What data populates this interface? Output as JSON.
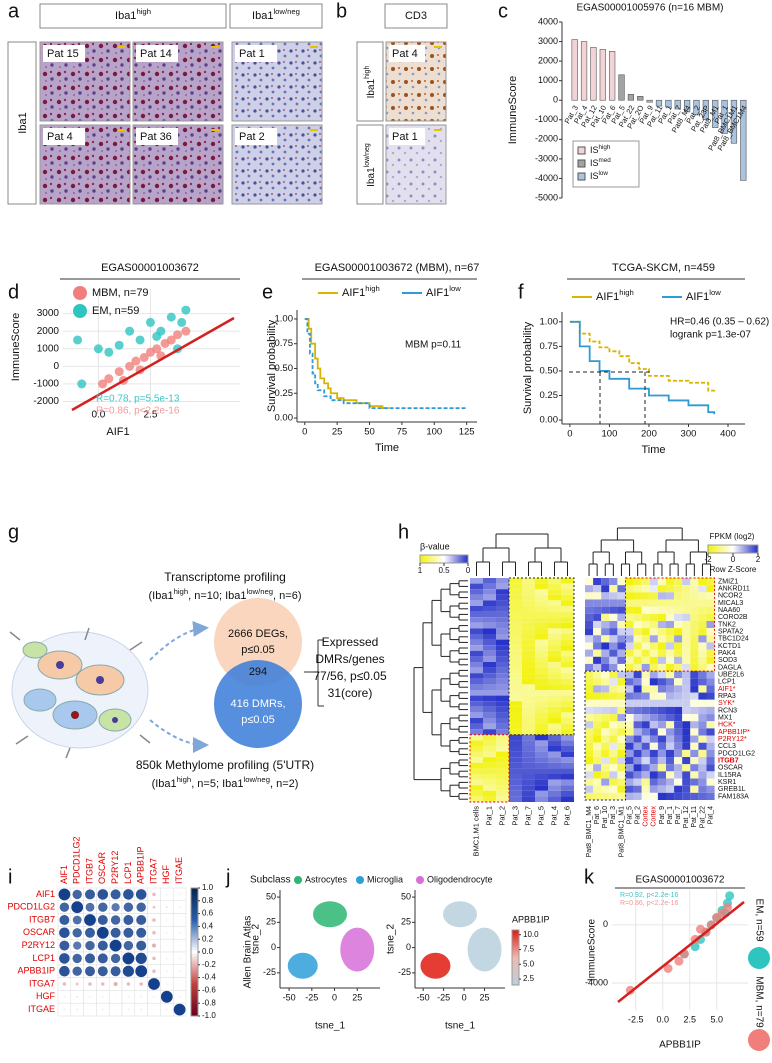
{
  "panel_labels": [
    "a",
    "b",
    "c",
    "d",
    "e",
    "f",
    "g",
    "h",
    "i",
    "j",
    "k"
  ],
  "a": {
    "groups": [
      [
        "Iba1",
        "high"
      ],
      [
        "Iba1",
        "low/neg"
      ]
    ],
    "row_label": "Iba1",
    "tiles": [
      "Pat 15",
      "Pat 14",
      "Pat 1",
      "Pat 4",
      "Pat 36",
      "Pat 2"
    ]
  },
  "b": {
    "header": "CD3",
    "rows": [
      [
        "Iba1",
        "high"
      ],
      [
        "Iba1",
        "low/neg"
      ]
    ],
    "tiles": [
      "Pat 4",
      "Pat 1"
    ]
  },
  "c": {
    "type": "bar",
    "title": "EGAS00001005976 (n=16 MBM)",
    "ylabel": "ImmuneScore",
    "categories": [
      "Pat_3",
      "Pat_4",
      "Pat_12",
      "Pat_10",
      "Pat_6",
      "Pat_5",
      "Pat_22",
      "Pat_2O",
      "Pat_9",
      "Pat_11",
      "Pat_1",
      "Pat_7",
      "Pat8_M4",
      "Pat_2",
      "Pat_23P",
      "Pat8_M1",
      "Pat_1",
      "Pat8_BMC1M1",
      "Pat8_BMC1M4"
    ],
    "series": [
      {
        "name": [
          "IS",
          "high"
        ],
        "color": "#f2d4d7",
        "values": [
          3100,
          3000,
          2700,
          2600,
          2500,
          null,
          null,
          null,
          null,
          null,
          null,
          null,
          null,
          null,
          null,
          null,
          null,
          null,
          null
        ]
      },
      {
        "name": [
          "IS",
          "med"
        ],
        "color": "#a3a3a3",
        "values": [
          null,
          null,
          null,
          null,
          null,
          1300,
          300,
          200,
          null,
          null,
          null,
          null,
          null,
          null,
          null,
          null,
          null,
          null,
          null
        ]
      },
      {
        "name": [
          "IS",
          "low"
        ],
        "color": "#a9c3e0",
        "values": [
          null,
          null,
          null,
          null,
          null,
          null,
          null,
          null,
          -100,
          -300,
          -350,
          -450,
          -600,
          -750,
          -1000,
          -1400,
          -1700,
          -2200,
          -4100
        ]
      }
    ],
    "ylim": [
      -5000,
      4000
    ],
    "yticks": [
      4000,
      3000,
      2000,
      1000,
      0,
      -1000,
      -2000,
      -3000,
      -4000,
      -5000
    ]
  },
  "d": {
    "type": "scatter",
    "title": "EGAS00001003672",
    "xlabel": "AIF1",
    "ylabel": "ImmuneScore",
    "xlim": [
      -1.7,
      6.8
    ],
    "ylim": [
      -2200,
      4400
    ],
    "xticks": [
      {
        "value": 0,
        "label": "0.0"
      },
      {
        "value": 2.5,
        "label": "2.5"
      }
    ],
    "yticks": [
      -2000,
      -1000,
      0,
      1000,
      2000,
      3000
    ],
    "grid": true,
    "series": [
      {
        "name": "MBM, n=79",
        "color": "#f07f7c",
        "x": [
          0.2,
          0.5,
          1,
          1.5,
          1.8,
          2.2,
          2.5,
          2.8,
          3.2,
          3.5,
          3.8,
          4.2,
          1.2,
          2,
          3
        ],
        "y": [
          -1000,
          -700,
          -300,
          0,
          300,
          500,
          800,
          1000,
          1300,
          1500,
          1800,
          2000,
          -800,
          -200,
          600
        ]
      },
      {
        "name": "EM, n=59",
        "color": "#2ec4c0",
        "x": [
          -1,
          -0.8,
          0,
          0.5,
          1.5,
          2,
          2.5,
          3,
          3.5,
          4,
          4.2,
          1,
          2.8,
          3.8
        ],
        "y": [
          1500,
          -1000,
          1000,
          800,
          2000,
          1500,
          2500,
          2000,
          2800,
          2500,
          3200,
          1200,
          1700,
          1000
        ]
      }
    ],
    "annotations": [
      {
        "text": "R=0.78, p=5.5e-13",
        "color": "#3cc6c6"
      },
      {
        "text": "R=0.86, p<2.2e-16",
        "color": "#f29a9a"
      }
    ]
  },
  "e": {
    "type": "survival",
    "title": "EGAS00001003672 (MBM), n=67",
    "xlabel": "Time",
    "ylabel": "Survival probability",
    "annotations": [
      "MBM p=0.11"
    ],
    "xlim": [
      -6,
      133
    ],
    "ylim": [
      -0.04,
      1.09
    ],
    "xticks": [
      0,
      25,
      50,
      75,
      100,
      125
    ],
    "yticks": [
      {
        "value": 0,
        "label": "0.00"
      },
      {
        "value": 0.25,
        "label": "0.25"
      },
      {
        "value": 0.5,
        "label": "0.50"
      },
      {
        "value": 0.75,
        "label": "0.75"
      },
      {
        "value": 1,
        "label": "1.00"
      }
    ],
    "series": [
      {
        "name": [
          "AIF1",
          "high"
        ],
        "color": "#d9b300",
        "dash": false,
        "x": [
          0,
          3,
          5,
          8,
          10,
          12,
          15,
          18,
          20,
          25,
          30,
          40,
          50,
          60,
          65
        ],
        "y": [
          1,
          0.9,
          0.75,
          0.6,
          0.5,
          0.4,
          0.35,
          0.3,
          0.25,
          0.2,
          0.18,
          0.15,
          0.12,
          0.1,
          0.1
        ]
      },
      {
        "name": [
          "AIF1",
          "low"
        ],
        "color": "#2f9bd6",
        "dash": true,
        "x": [
          0,
          2,
          4,
          6,
          8,
          10,
          15,
          20,
          30,
          50,
          75,
          100,
          125
        ],
        "y": [
          1,
          0.85,
          0.65,
          0.45,
          0.35,
          0.28,
          0.22,
          0.18,
          0.15,
          0.1,
          0.1,
          0.1,
          0.1
        ]
      }
    ]
  },
  "f": {
    "type": "survival",
    "title": "TCGA-SKCM, n=459",
    "xlabel": "Time",
    "ylabel": "Survival probability",
    "annotations": [
      "HR=0.46 (0.35 – 0.62)",
      "logrank p=1.3e-07"
    ],
    "xlim": [
      -20,
      443
    ],
    "ylim": [
      -0.04,
      1.1
    ],
    "xticks": [
      0,
      100,
      200,
      300,
      400
    ],
    "yticks": [
      {
        "value": 0,
        "label": "0.00"
      },
      {
        "value": 0.25,
        "label": "0.25"
      },
      {
        "value": 0.5,
        "label": "0.50"
      },
      {
        "value": 0.75,
        "label": "0.75"
      },
      {
        "value": 1,
        "label": "1.00"
      }
    ],
    "series": [
      {
        "name": [
          "AIF1",
          "high"
        ],
        "color": "#d9b300",
        "dash": true,
        "x": [
          0,
          25,
          50,
          75,
          100,
          125,
          150,
          175,
          200,
          250,
          300,
          350,
          370
        ],
        "y": [
          1,
          0.88,
          0.8,
          0.74,
          0.7,
          0.65,
          0.58,
          0.52,
          0.45,
          0.4,
          0.38,
          0.3,
          0.3
        ]
      },
      {
        "name": [
          "AIF1",
          "low"
        ],
        "color": "#2f9bd6",
        "dash": false,
        "x": [
          0,
          25,
          50,
          75,
          100,
          150,
          200,
          250,
          300,
          350,
          365
        ],
        "y": [
          1,
          0.75,
          0.6,
          0.5,
          0.42,
          0.32,
          0.25,
          0.2,
          0.15,
          0.08,
          0.06
        ]
      }
    ]
  },
  "g": {
    "transcriptome": "Transcriptome profiling",
    "transcriptome_groups": [
      "(Iba1",
      "high",
      ", n=10; Iba1",
      "low/neg",
      ", n=6)"
    ],
    "degs": [
      "2666 DEGs,",
      "p≤0.05"
    ],
    "overlap": "294",
    "dmrs": [
      "416 DMRs,",
      "p≤0.05"
    ],
    "expressed": [
      "Expressed",
      "DMRs/genes",
      "77/56, p≤0.05",
      "31(core)"
    ],
    "methylome": "850k Methylome profiling (5'UTR)",
    "methylome_groups": [
      "(Iba1",
      "high",
      ", n=5; Iba1",
      "low/neg",
      ", n=2)"
    ]
  },
  "h": {
    "beta_label": "β-value",
    "beta_ticks": [
      1,
      0.5,
      0
    ],
    "fpkm_label": "FPKM (log2)",
    "zscore_label": "Row Z-Score",
    "z_ticks": [
      -2,
      0,
      2
    ],
    "left_columns": [
      "BMC1.M1 cells",
      "Pat_1",
      "Pat_2",
      "Pat_3",
      "Pat_7",
      "Pat_5",
      "Pat_4",
      "Pat_6"
    ],
    "right_columns": [
      {
        "name": "Pat8_BMC1_M4"
      },
      {
        "name": "Pat_6"
      },
      {
        "name": "Pat_10"
      },
      {
        "name": "Pat_3"
      },
      {
        "name": "Pat8_BMC1_M1"
      },
      {
        "name": "Pat_5"
      },
      {
        "name": "Pat_2"
      },
      {
        "name": "Cortex",
        "color": "#e00000"
      },
      {
        "name": "Cortex",
        "color": "#e00000"
      },
      {
        "name": "Pat_9"
      },
      {
        "name": "Pat_1"
      },
      {
        "name": "Pat_7"
      },
      {
        "name": "Pat_12"
      },
      {
        "name": "Pat_11"
      },
      {
        "name": "Pat_22"
      },
      {
        "name": "Pat_4"
      }
    ],
    "genes": [
      {
        "name": "ZMIZ1"
      },
      {
        "name": "ANKRD11"
      },
      {
        "name": "NCOR2"
      },
      {
        "name": "MICAL3"
      },
      {
        "name": "NAA60"
      },
      {
        "name": "CORO2B"
      },
      {
        "name": "TNK2"
      },
      {
        "name": "SPATA2"
      },
      {
        "name": "TBC1D24"
      },
      {
        "name": "KCTD1"
      },
      {
        "name": "PAK4"
      },
      {
        "name": "SOD3"
      },
      {
        "name": "DAGLA"
      },
      {
        "name": "UBE2L6"
      },
      {
        "name": "LCP1"
      },
      {
        "name": "AIF1*",
        "color": "#e00000"
      },
      {
        "name": "RPA3"
      },
      {
        "name": "SYK*",
        "color": "#e00000"
      },
      {
        "name": "RCN3"
      },
      {
        "name": "MX1"
      },
      {
        "name": "HCK*",
        "color": "#e00000"
      },
      {
        "name": "APBB1IP*",
        "color": "#e00000"
      },
      {
        "name": "P2RY12*",
        "color": "#e00000"
      },
      {
        "name": "CCL3"
      },
      {
        "name": "PDCD1LG2"
      },
      {
        "name": "ITGB7",
        "color": "#e00000",
        "bold": true
      },
      {
        "name": "OSCAR"
      },
      {
        "name": "IL15RA"
      },
      {
        "name": "KSR1"
      },
      {
        "name": "GREB1L"
      },
      {
        "name": "FAM183A"
      }
    ]
  },
  "i": {
    "labels": [
      "AIF1",
      "PDCD1LG2",
      "ITGB7",
      "OSCAR",
      "P2RY12",
      "LCP1",
      "APBB1IP",
      "ITGA7",
      "HGF",
      "ITGAE"
    ],
    "label_color": "#e00000",
    "matrix": [
      [
        1,
        0.8,
        0.85,
        0.9,
        0.85,
        0.9,
        0.9,
        -0.3,
        0.1,
        0.1
      ],
      [
        0.8,
        1,
        0.75,
        0.8,
        0.7,
        0.8,
        0.8,
        -0.25,
        0.15,
        0.1
      ],
      [
        0.85,
        0.75,
        1,
        0.85,
        0.8,
        0.85,
        0.85,
        -0.3,
        0.1,
        0.05
      ],
      [
        0.9,
        0.8,
        0.85,
        1,
        0.85,
        0.85,
        0.85,
        -0.3,
        0.1,
        0.1
      ],
      [
        0.85,
        0.7,
        0.8,
        0.85,
        1,
        0.8,
        0.85,
        -0.35,
        0.05,
        0.05
      ],
      [
        0.9,
        0.8,
        0.85,
        0.85,
        0.8,
        1,
        0.95,
        -0.3,
        0.1,
        0.1
      ],
      [
        0.9,
        0.8,
        0.85,
        0.85,
        0.85,
        0.95,
        1,
        -0.3,
        0.1,
        0.1
      ],
      [
        -0.3,
        -0.25,
        -0.3,
        -0.3,
        -0.35,
        -0.3,
        -0.3,
        1,
        0.1,
        0.05
      ],
      [
        0.1,
        0.15,
        0.1,
        0.1,
        0.05,
        0.1,
        0.1,
        0.1,
        1,
        0.1
      ],
      [
        0.1,
        0.1,
        0.05,
        0.1,
        0.05,
        0.1,
        0.1,
        0.05,
        0.1,
        1
      ]
    ],
    "colorbar_lim": [
      -1,
      1
    ],
    "colorbar_ticks": [
      {
        "value": 1,
        "label": "1.0"
      },
      0.8,
      0.6,
      0.4,
      0.2,
      {
        "value": 0,
        "label": "0.0"
      },
      -0.2,
      -0.4,
      -0.6,
      -0.8,
      {
        "value": -1,
        "label": "-1.0"
      }
    ]
  },
  "j": {
    "subclass_label": "Subclass",
    "classes": [
      {
        "name": "Astrocytes",
        "color": "#2bb673"
      },
      {
        "name": "Microglia",
        "color": "#2e9fd8"
      },
      {
        "name": "Oligodendrocyte",
        "color": "#d66fd8"
      }
    ],
    "side_label": "Allen Brain Atlas",
    "xlabel": "tsne_1",
    "ylabel": "tsne_2",
    "xlim": [
      -60,
      50
    ],
    "ylim": [
      -40,
      57
    ],
    "xticks": [
      -50,
      -25,
      0,
      25
    ],
    "yticks": [
      -25,
      0,
      25,
      50
    ],
    "colorbar_title": "APBB1IP",
    "colorbar_lim": [
      1.5,
      10.8
    ],
    "colorbar_ticks": [
      {
        "value": 10,
        "label": "10.0"
      },
      7.5,
      {
        "value": 5,
        "label": "5.0"
      },
      2.5
    ]
  },
  "k": {
    "type": "scatter",
    "title": "EGAS00001003672",
    "xlabel": "APBB1IP",
    "ylabel": "ImmuneScore",
    "xlim": [
      -4.7,
      7.9
    ],
    "ylim": [
      -5860,
      2400
    ],
    "xticks": [
      -2.5,
      {
        "value": 0,
        "label": "0.0"
      },
      2.5,
      {
        "value": 5,
        "label": "5.0"
      }
    ],
    "yticks": [
      -4000,
      0
    ],
    "grid": true,
    "series": [
      {
        "name": "EM, n=59",
        "color": "#2ec4c0",
        "x": [
          4,
          4.5,
          5,
          5.5,
          6,
          3.5,
          3,
          6.2,
          2,
          5.8
        ],
        "y": [
          -500,
          0,
          500,
          1000,
          1500,
          -1000,
          -1500,
          2000,
          -2000,
          800
        ]
      },
      {
        "name": "MBM, n=79",
        "color": "#f07f7c",
        "x": [
          -3,
          0.5,
          2,
          3,
          4,
          4.5,
          5,
          5.5,
          6,
          3.5,
          1.5
        ],
        "y": [
          -4500,
          -3000,
          -2000,
          -1000,
          -500,
          0,
          500,
          800,
          1200,
          -300,
          -2500
        ]
      }
    ],
    "annotations": [
      {
        "text": "R=0.92, p<2.2e-16",
        "color": "#3cc6c6"
      },
      {
        "text": "R=0.86, p<2.2e-16",
        "color": "#f29a9a"
      }
    ]
  }
}
